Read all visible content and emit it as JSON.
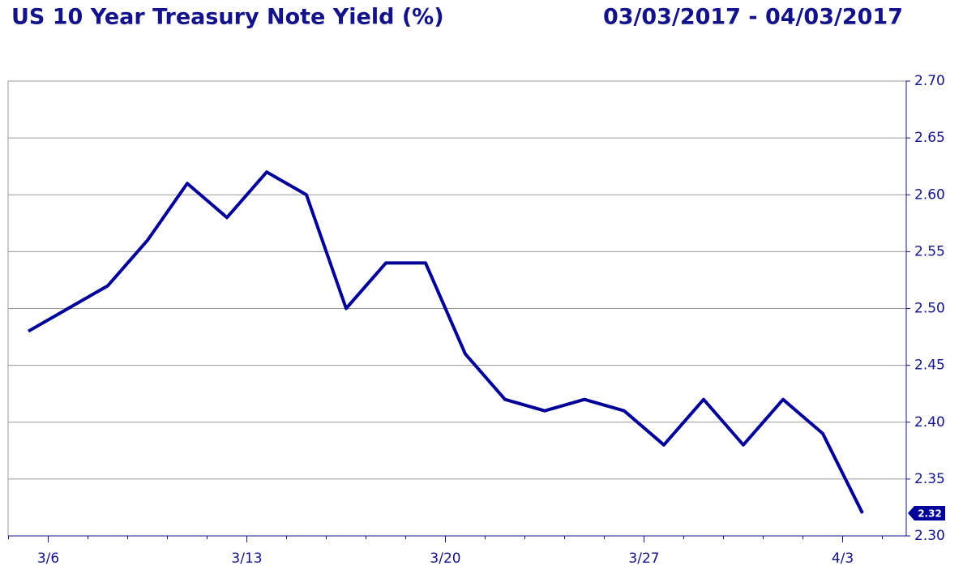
{
  "chart_data": {
    "type": "line",
    "title": "US 10 Year Treasury Note Yield (%)",
    "subtitle": "03/03/2017 - 04/03/2017",
    "categories": [
      null,
      "3/6",
      null,
      null,
      null,
      null,
      "3/13",
      null,
      null,
      null,
      null,
      "3/20",
      null,
      null,
      null,
      null,
      "3/27",
      null,
      null,
      null,
      null,
      "4/3"
    ],
    "series": [
      {
        "color": "#000099",
        "values": [
          2.48,
          2.5,
          2.52,
          2.56,
          2.61,
          2.58,
          2.62,
          2.6,
          2.5,
          2.54,
          2.54,
          2.46,
          2.42,
          2.41,
          2.42,
          2.41,
          2.38,
          2.42,
          2.38,
          2.42,
          2.39,
          2.32
        ]
      }
    ],
    "ylim": [
      2.3,
      2.7
    ],
    "yticks": [
      {
        "value": 2.3,
        "label": "2.30"
      },
      {
        "value": 2.35,
        "label": "2.35"
      },
      {
        "value": 2.4,
        "label": "2.40"
      },
      {
        "value": 2.45,
        "label": "2.45"
      },
      {
        "value": 2.5,
        "label": "2.50"
      },
      {
        "value": 2.55,
        "label": "2.55"
      },
      {
        "value": 2.6,
        "label": "2.60"
      },
      {
        "value": 2.65,
        "label": "2.65"
      },
      {
        "value": 2.7,
        "label": "2.70"
      }
    ],
    "y_axis_side": "right",
    "grid": true
  }
}
